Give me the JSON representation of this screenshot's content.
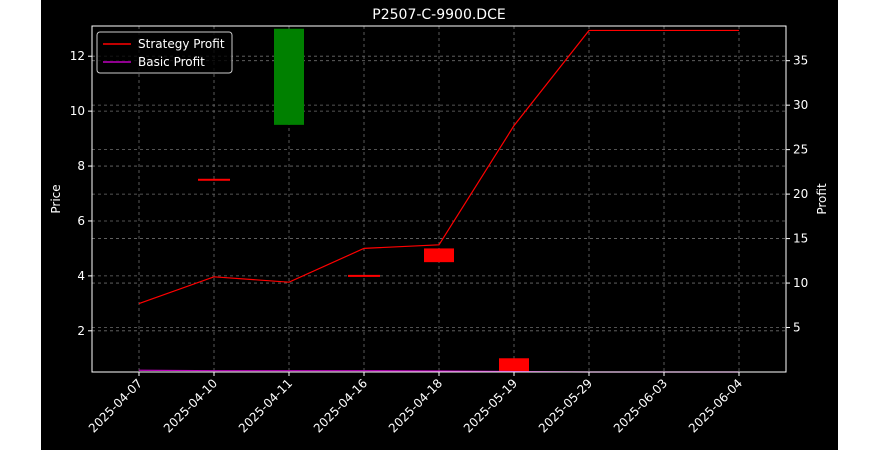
{
  "chart_data": {
    "type": "candlestick",
    "title": "P2507-C-9900.DCE",
    "ylabel_left": "Price",
    "ylabel_right": "Profit",
    "categories": [
      "2025-04-07",
      "2025-04-10",
      "2025-04-11",
      "2025-04-16",
      "2025-04-18",
      "2025-05-19",
      "2025-05-29",
      "2025-06-03",
      "2025-06-04"
    ],
    "ylim_left": [
      0.5,
      13.1
    ],
    "yticks_left": [
      2,
      4,
      6,
      8,
      10,
      12
    ],
    "ylim_right": [
      0.0,
      38.9
    ],
    "yticks_right": [
      5,
      10,
      15,
      20,
      25,
      30,
      35
    ],
    "candles": [
      {
        "date": "2025-04-10",
        "open": 7.5,
        "close": 7.5,
        "color": "#ff0000"
      },
      {
        "date": "2025-04-11",
        "open": 9.5,
        "close": 13.0,
        "color": "#008000"
      },
      {
        "date": "2025-04-16",
        "open": 4.0,
        "close": 4.0,
        "color": "#ff0000"
      },
      {
        "date": "2025-04-18",
        "open": 5.0,
        "close": 4.5,
        "color": "#ff0000"
      },
      {
        "date": "2025-05-19",
        "open": 1.0,
        "close": 0.5,
        "color": "#ff0000"
      }
    ],
    "series": [
      {
        "name": "Strategy Profit",
        "color": "#ff0000",
        "axis": "right",
        "values": [
          7.7,
          10.7,
          10.1,
          13.9,
          14.3,
          27.7,
          38.4,
          38.4,
          38.4
        ]
      },
      {
        "name": "Basic Profit",
        "color": "#bf00bf",
        "axis": "right",
        "values": [
          0.2,
          0.15,
          0.15,
          0.15,
          0.12,
          0.05,
          0.0,
          0.0,
          0.0
        ]
      }
    ],
    "grid": true,
    "legend_position": "top-left",
    "background": "#000000"
  }
}
